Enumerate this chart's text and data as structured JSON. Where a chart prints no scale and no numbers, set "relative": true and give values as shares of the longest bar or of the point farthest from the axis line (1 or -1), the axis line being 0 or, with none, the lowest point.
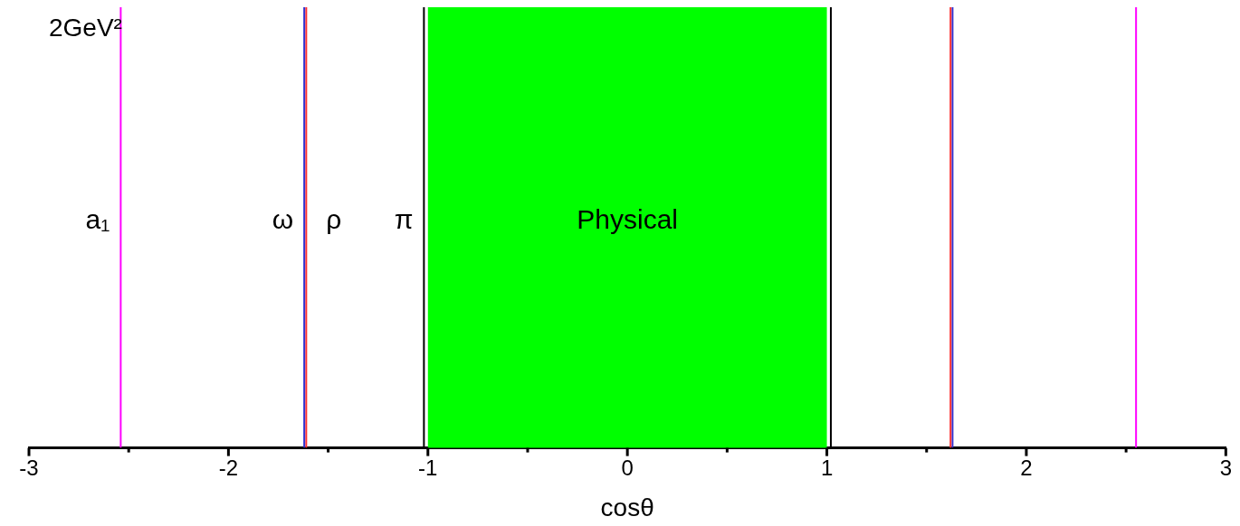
{
  "chart_data": {
    "type": "line",
    "relative": true,
    "xlabel": "cosθ",
    "xlim": [
      -3,
      3
    ],
    "xticks": [
      -3,
      {
        "value": -2.5,
        "label": null
      },
      -2,
      {
        "value": -1.5,
        "label": null
      },
      -1,
      {
        "value": -0.5,
        "label": null
      },
      0,
      {
        "value": 0.5,
        "label": null
      },
      1,
      {
        "value": 1.5,
        "label": null
      },
      2,
      {
        "value": 2.5,
        "label": null
      },
      3
    ],
    "bands": [
      {
        "axis": "x",
        "from": -1,
        "to": 1,
        "label": "Physical",
        "color": "#00ff00"
      }
    ],
    "ref_lines": [
      {
        "axis": "x",
        "value": -1.02,
        "label": "π",
        "color": "#000000"
      },
      {
        "axis": "x",
        "value": 1.02,
        "color": "#000000"
      }
    ],
    "series": [
      {
        "name": "a₁",
        "color": "#ff00ff",
        "x": [
          -2.54,
          -2.54
        ],
        "values": [
          0,
          1
        ]
      },
      {
        "name": "ω",
        "color": "#3030d0",
        "x": [
          -1.62,
          -1.62
        ],
        "values": [
          0,
          1
        ]
      },
      {
        "name": "ρ",
        "color": "#ff3030",
        "x": [
          -1.61,
          -1.61
        ],
        "values": [
          0,
          1
        ]
      },
      {
        "color": "#ff3030",
        "x": [
          1.62,
          1.62
        ],
        "values": [
          0,
          1
        ]
      },
      {
        "color": "#3030d0",
        "x": [
          1.63,
          1.63
        ],
        "values": [
          0,
          1
        ]
      },
      {
        "color": "#ff00ff",
        "x": [
          2.55,
          2.55
        ],
        "values": [
          0,
          1
        ]
      }
    ],
    "annotations": [
      "2GeV²"
    ]
  }
}
